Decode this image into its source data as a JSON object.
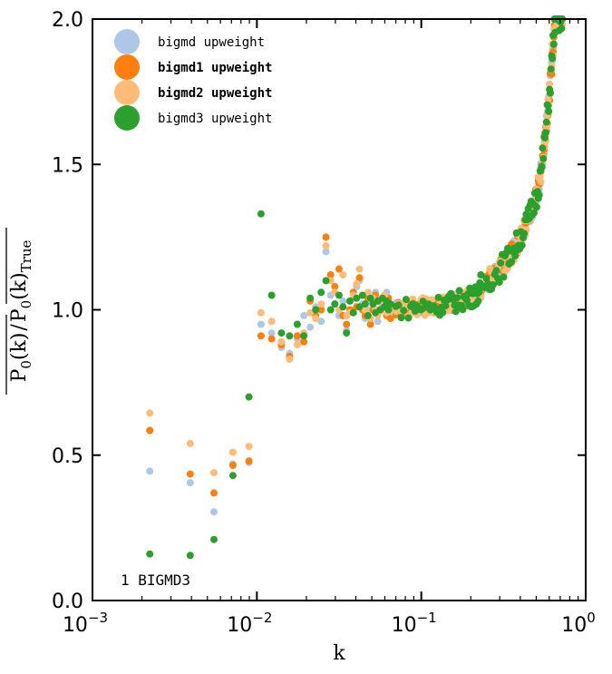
{
  "chart_data": {
    "type": "scatter",
    "xlabel": "k",
    "ylabel": "P0(k) / P0(k)True",
    "ylabel_parts": {
      "num_base": "P",
      "num_sub": "0",
      "num_arg": "(k)",
      "den_base": "P",
      "den_sub": "0",
      "den_arg": "(k)",
      "den_sub2": "True"
    },
    "xscale": "log",
    "xlim": [
      0.001,
      1.0
    ],
    "ylim": [
      0.0,
      2.0
    ],
    "x_ticks": [
      {
        "value": 0.001,
        "base": "10",
        "exp": "−3"
      },
      {
        "value": 0.01,
        "base": "10",
        "exp": "−2"
      },
      {
        "value": 0.1,
        "base": "10",
        "exp": "−1"
      },
      {
        "value": 1.0,
        "base": "10",
        "exp": "0"
      }
    ],
    "y_ticks": [
      {
        "value": 0.0,
        "label": "0.0"
      },
      {
        "value": 0.5,
        "label": "0.5"
      },
      {
        "value": 1.0,
        "label": "1.0"
      },
      {
        "value": 1.5,
        "label": "1.5"
      },
      {
        "value": 2.0,
        "label": "2.0"
      }
    ],
    "grid": false,
    "legend_position": "top-left",
    "annotation": "1 BIGMD3",
    "series": [
      {
        "name": "bigmd upweight",
        "color": "#aec7e8",
        "bold": false,
        "points": [
          [
            0.00223,
            0.445
          ],
          [
            0.00393,
            0.405
          ],
          [
            0.00548,
            0.305
          ],
          [
            0.00715,
            0.47
          ],
          [
            0.00895,
            0.475
          ],
          [
            0.0106,
            0.95
          ],
          [
            0.0123,
            0.92
          ],
          [
            0.0141,
            0.87
          ],
          [
            0.0158,
            0.85
          ],
          [
            0.0176,
            0.9
          ],
          [
            0.0193,
            0.98
          ],
          [
            0.0211,
            0.94
          ],
          [
            0.0228,
            1.01
          ],
          [
            0.0246,
            0.96
          ],
          [
            0.0263,
            1.2
          ],
          [
            0.0281,
            1.05
          ],
          [
            0.0298,
            1.02
          ],
          [
            0.0316,
            0.98
          ],
          [
            0.0334,
            1.03
          ],
          [
            0.0351,
            0.93
          ],
          [
            0.0368,
            1.0
          ],
          [
            0.0386,
            1.04
          ],
          [
            0.0404,
            1.08
          ],
          [
            0.0421,
            1.1
          ],
          [
            0.0439,
            1.02
          ],
          [
            0.0456,
            0.97
          ],
          [
            0.0474,
            1.0
          ],
          [
            0.0491,
            1.03
          ],
          [
            0.0509,
            1.0
          ],
          [
            0.0526,
            1.06
          ],
          [
            0.0544,
            0.96
          ],
          [
            0.0562,
            1.0
          ],
          [
            0.058,
            1.02
          ],
          [
            0.0597,
            1.03
          ],
          [
            0.0615,
            1.06
          ],
          [
            0.0632,
            0.99
          ],
          [
            0.065,
            1.0
          ]
        ]
      },
      {
        "name": "bigmd1 upweight",
        "color": "#ff7f0e",
        "bold": true,
        "points": [
          [
            0.00223,
            0.585
          ],
          [
            0.00393,
            0.435
          ],
          [
            0.00548,
            0.37
          ],
          [
            0.00715,
            0.465
          ],
          [
            0.00895,
            0.48
          ],
          [
            0.0106,
            0.91
          ],
          [
            0.0123,
            0.9
          ],
          [
            0.0141,
            0.88
          ],
          [
            0.0158,
            0.84
          ],
          [
            0.0176,
            0.91
          ],
          [
            0.0193,
            0.89
          ],
          [
            0.0211,
            1.03
          ],
          [
            0.0228,
            0.98
          ],
          [
            0.0246,
            1.0
          ],
          [
            0.0263,
            1.25
          ],
          [
            0.0281,
            1.12
          ],
          [
            0.0298,
            1.08
          ],
          [
            0.0316,
            1.14
          ],
          [
            0.0334,
            0.98
          ],
          [
            0.0351,
            0.95
          ],
          [
            0.0368,
            1.0
          ],
          [
            0.0386,
            1.06
          ],
          [
            0.0404,
            1.01
          ],
          [
            0.0421,
            1.11
          ],
          [
            0.0439,
            1.0
          ],
          [
            0.0456,
            0.98
          ],
          [
            0.0474,
            1.04
          ],
          [
            0.0491,
            0.95
          ],
          [
            0.0509,
            1.0
          ],
          [
            0.0526,
            1.05
          ],
          [
            0.0544,
            0.99
          ],
          [
            0.0562,
            1.03
          ],
          [
            0.058,
            1.0
          ],
          [
            0.0597,
            1.02
          ],
          [
            0.0615,
            0.98
          ],
          [
            0.0632,
            1.04
          ],
          [
            0.065,
            0.97
          ]
        ]
      },
      {
        "name": "bigmd2 upweight",
        "color": "#ffbb78",
        "bold": true,
        "points": [
          [
            0.00223,
            0.645
          ],
          [
            0.00393,
            0.54
          ],
          [
            0.00548,
            0.44
          ],
          [
            0.00715,
            0.51
          ],
          [
            0.00895,
            0.53
          ],
          [
            0.0106,
            0.99
          ],
          [
            0.0123,
            0.96
          ],
          [
            0.0141,
            0.89
          ],
          [
            0.0158,
            0.83
          ],
          [
            0.0176,
            0.88
          ],
          [
            0.0193,
            0.92
          ],
          [
            0.0211,
            0.99
          ],
          [
            0.0228,
            0.97
          ],
          [
            0.0246,
            1.02
          ],
          [
            0.0263,
            1.22
          ],
          [
            0.0281,
            1.1
          ],
          [
            0.0298,
            1.06
          ],
          [
            0.0316,
            1.0
          ],
          [
            0.0334,
            1.12
          ],
          [
            0.0351,
            0.98
          ],
          [
            0.0368,
            0.99
          ],
          [
            0.0386,
            1.05
          ],
          [
            0.0404,
            1.09
          ],
          [
            0.0421,
            1.14
          ],
          [
            0.0439,
            1.01
          ],
          [
            0.0456,
            1.0
          ],
          [
            0.0474,
            1.06
          ],
          [
            0.0491,
            0.97
          ],
          [
            0.0509,
            1.04
          ],
          [
            0.0526,
            1.0
          ],
          [
            0.0544,
            0.98
          ],
          [
            0.0562,
            1.03
          ],
          [
            0.058,
            1.0
          ],
          [
            0.0597,
            1.05
          ],
          [
            0.0615,
            0.99
          ],
          [
            0.0632,
            1.02
          ],
          [
            0.065,
            1.0
          ]
        ]
      },
      {
        "name": "bigmd3 upweight",
        "color": "#2ca02c",
        "bold": false,
        "points": [
          [
            0.00223,
            0.16
          ],
          [
            0.00393,
            0.155
          ],
          [
            0.00548,
            0.21
          ],
          [
            0.00715,
            0.43
          ],
          [
            0.00895,
            0.7
          ],
          [
            0.0106,
            1.33
          ],
          [
            0.0123,
            1.05
          ],
          [
            0.0141,
            0.92
          ],
          [
            0.0158,
            0.91
          ],
          [
            0.0176,
            0.95
          ],
          [
            0.0193,
            0.91
          ],
          [
            0.0211,
            1.04
          ],
          [
            0.0228,
            1.0
          ],
          [
            0.0246,
            1.06
          ],
          [
            0.0263,
            1.1
          ],
          [
            0.0281,
            1.0
          ],
          [
            0.0298,
            1.02
          ],
          [
            0.0316,
            1.05
          ],
          [
            0.0334,
            1.01
          ],
          [
            0.0351,
            0.92
          ],
          [
            0.0368,
            1.03
          ],
          [
            0.0386,
            0.99
          ],
          [
            0.0404,
            1.04
          ],
          [
            0.0421,
            1.01
          ],
          [
            0.0439,
            1.05
          ],
          [
            0.0456,
            1.02
          ],
          [
            0.0474,
            0.98
          ],
          [
            0.0491,
            1.04
          ],
          [
            0.0509,
            1.02
          ],
          [
            0.0526,
            0.99
          ],
          [
            0.0544,
            1.03
          ],
          [
            0.0562,
            1.0
          ],
          [
            0.058,
            1.04
          ],
          [
            0.0597,
            1.01
          ],
          [
            0.0615,
            1.03
          ],
          [
            0.0632,
            1.0
          ],
          [
            0.065,
            1.02
          ]
        ]
      }
    ]
  }
}
